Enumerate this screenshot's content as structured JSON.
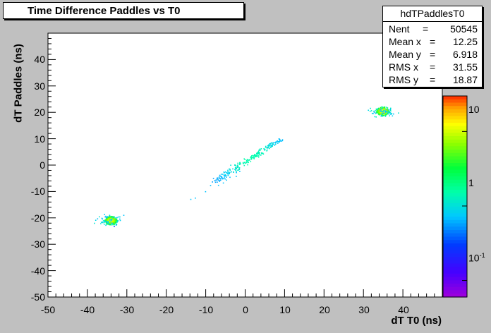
{
  "title": "Time Difference Paddles vs T0",
  "stats": {
    "name": "hdTPaddlesT0",
    "rows": [
      {
        "label": "Nent",
        "value": "50545"
      },
      {
        "label": "Mean x",
        "value": "12.25"
      },
      {
        "label": "Mean y",
        "value": "6.918"
      },
      {
        "label": "RMS x",
        "value": "31.55"
      },
      {
        "label": "RMS y",
        "value": "18.87"
      }
    ]
  },
  "chart_data": {
    "type": "heatmap",
    "title": "Time Difference Paddles vs T0",
    "xlabel": "dT T0 (ns)",
    "ylabel": "dT Paddles (ns)",
    "xlim": [
      -50,
      50
    ],
    "ylim": [
      -50,
      50
    ],
    "xticks": [
      "-50",
      "-40",
      "-30",
      "-20",
      "-10",
      "0",
      "10",
      "20",
      "30",
      "40"
    ],
    "yticks": [
      "-50",
      "-40",
      "-30",
      "-20",
      "-10",
      "0",
      "10",
      "20",
      "30",
      "40"
    ],
    "zscale": "log",
    "zticks": [
      {
        "value": 10,
        "label": "10"
      },
      {
        "value": 1,
        "label": "1"
      },
      {
        "value": 0.1,
        "label": "10",
        "exp": "-1"
      }
    ],
    "clusters": [
      {
        "x": -34.2,
        "y": -20.8,
        "sigma_x": 0.9,
        "sigma_y": 0.9,
        "peak": 12
      },
      {
        "x": 34.8,
        "y": 20.6,
        "sigma_x": 0.9,
        "sigma_y": 0.9,
        "peak": 14
      }
    ],
    "band": {
      "x_from": -8,
      "y_from": -6,
      "x_to": 9,
      "y_to": 10,
      "level": 1
    }
  }
}
